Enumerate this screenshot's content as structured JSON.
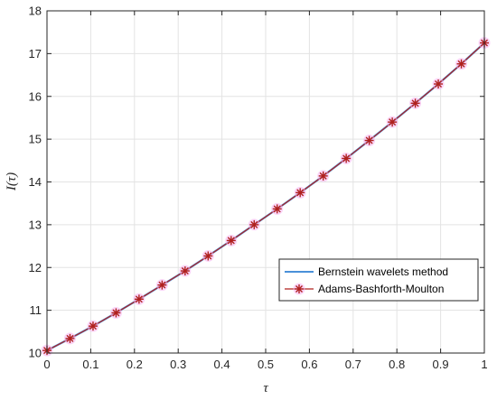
{
  "chart_data": {
    "type": "line",
    "xlabel": "τ",
    "ylabel": "I(τ)",
    "xlim": [
      0,
      1
    ],
    "ylim": [
      10,
      18
    ],
    "x_ticks": [
      "0",
      "0.1",
      "0.2",
      "0.3",
      "0.4",
      "0.5",
      "0.6",
      "0.7",
      "0.8",
      "0.9",
      "1"
    ],
    "y_ticks": [
      "10",
      "11",
      "12",
      "13",
      "14",
      "15",
      "16",
      "17",
      "18"
    ],
    "grid": true,
    "legend_position": "lower-right",
    "x": [
      0,
      0.0526,
      0.1053,
      0.1579,
      0.2105,
      0.2632,
      0.3158,
      0.3684,
      0.4211,
      0.4737,
      0.5263,
      0.5789,
      0.6316,
      0.6842,
      0.7368,
      0.7895,
      0.8421,
      0.8947,
      0.9474,
      1
    ],
    "series": [
      {
        "name": "Bernstein wavelets method",
        "color": "#4a90d9",
        "marker": "none",
        "values": [
          10.06,
          10.34,
          10.63,
          10.94,
          11.26,
          11.59,
          11.92,
          12.27,
          12.63,
          13.0,
          13.37,
          13.75,
          14.14,
          14.55,
          14.97,
          15.4,
          15.84,
          16.29,
          16.76,
          17.25
        ]
      },
      {
        "name": "Adams-Bashforth-Moulton",
        "color": "#b0211e",
        "marker": "asterisk",
        "values": [
          10.06,
          10.34,
          10.63,
          10.94,
          11.26,
          11.59,
          11.92,
          12.27,
          12.63,
          13.0,
          13.37,
          13.75,
          14.14,
          14.55,
          14.97,
          15.4,
          15.84,
          16.29,
          16.76,
          17.25
        ]
      }
    ]
  }
}
